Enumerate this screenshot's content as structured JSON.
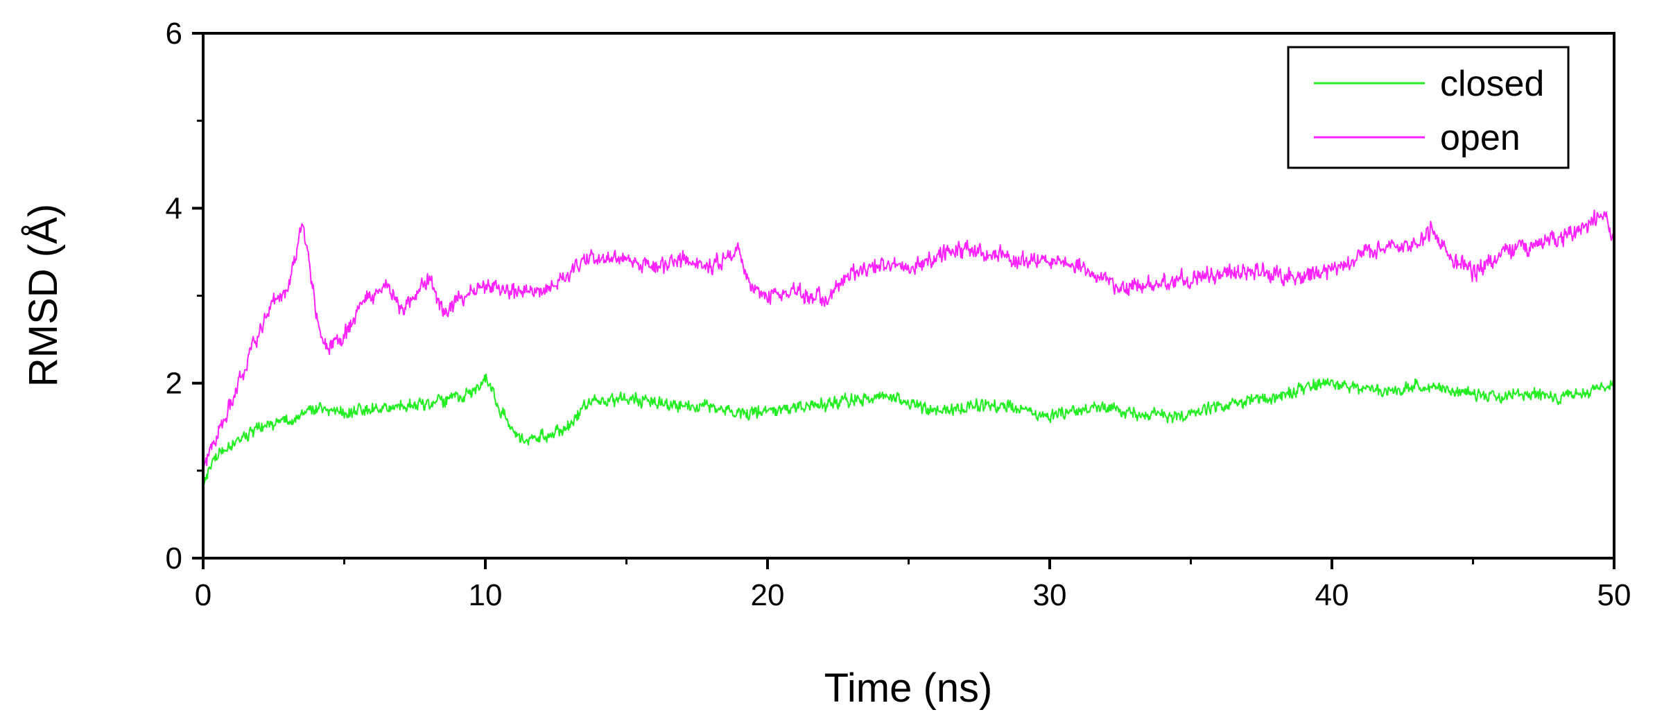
{
  "chart_data": {
    "type": "line",
    "title": "",
    "xlabel": "Time (ns)",
    "ylabel": "RMSD (Å)",
    "xlim": [
      0,
      50
    ],
    "ylim": [
      0,
      6
    ],
    "x_ticks": [
      0,
      10,
      20,
      30,
      40,
      50
    ],
    "x_minor_ticks": [
      5,
      15,
      25,
      35,
      45
    ],
    "y_ticks": [
      0,
      2,
      4,
      6
    ],
    "y_minor_ticks": [
      1,
      3,
      5
    ],
    "grid": false,
    "legend": {
      "position": "top-right"
    },
    "series": [
      {
        "name": "closed",
        "color": "#22ee22",
        "noise": 0.09,
        "points": [
          [
            0,
            0.8
          ],
          [
            0.3,
            1.1
          ],
          [
            0.7,
            1.25
          ],
          [
            1,
            1.3
          ],
          [
            1.5,
            1.4
          ],
          [
            2,
            1.5
          ],
          [
            2.5,
            1.55
          ],
          [
            3,
            1.6
          ],
          [
            3.5,
            1.65
          ],
          [
            4,
            1.7
          ],
          [
            5,
            1.65
          ],
          [
            6,
            1.7
          ],
          [
            7,
            1.72
          ],
          [
            8,
            1.75
          ],
          [
            9,
            1.85
          ],
          [
            9.8,
            1.95
          ],
          [
            10,
            2.05
          ],
          [
            10.5,
            1.7
          ],
          [
            11,
            1.45
          ],
          [
            11.5,
            1.35
          ],
          [
            12,
            1.4
          ],
          [
            12.8,
            1.45
          ],
          [
            13.5,
            1.75
          ],
          [
            14,
            1.8
          ],
          [
            15,
            1.82
          ],
          [
            16,
            1.78
          ],
          [
            17,
            1.75
          ],
          [
            18,
            1.72
          ],
          [
            19,
            1.65
          ],
          [
            20,
            1.68
          ],
          [
            21,
            1.72
          ],
          [
            22,
            1.75
          ],
          [
            23,
            1.82
          ],
          [
            24,
            1.85
          ],
          [
            25,
            1.78
          ],
          [
            26,
            1.7
          ],
          [
            27,
            1.72
          ],
          [
            28,
            1.75
          ],
          [
            29,
            1.7
          ],
          [
            30,
            1.62
          ],
          [
            31,
            1.7
          ],
          [
            32,
            1.72
          ],
          [
            33,
            1.65
          ],
          [
            34,
            1.62
          ],
          [
            35,
            1.65
          ],
          [
            36,
            1.72
          ],
          [
            37,
            1.78
          ],
          [
            38,
            1.85
          ],
          [
            39,
            1.95
          ],
          [
            40,
            2.02
          ],
          [
            41,
            1.95
          ],
          [
            42,
            1.9
          ],
          [
            43,
            1.98
          ],
          [
            44,
            1.95
          ],
          [
            45,
            1.88
          ],
          [
            46,
            1.85
          ],
          [
            47,
            1.87
          ],
          [
            48,
            1.85
          ],
          [
            49,
            1.9
          ],
          [
            50,
            2.0
          ]
        ]
      },
      {
        "name": "open",
        "color": "#ff22ff",
        "noise": 0.12,
        "points": [
          [
            0,
            1.0
          ],
          [
            0.5,
            1.4
          ],
          [
            1,
            1.8
          ],
          [
            1.5,
            2.2
          ],
          [
            2,
            2.6
          ],
          [
            2.5,
            2.95
          ],
          [
            3,
            3.05
          ],
          [
            3.3,
            3.5
          ],
          [
            3.5,
            3.85
          ],
          [
            3.8,
            3.3
          ],
          [
            4.1,
            2.6
          ],
          [
            4.4,
            2.4
          ],
          [
            5,
            2.55
          ],
          [
            5.5,
            2.8
          ],
          [
            6,
            3.05
          ],
          [
            6.5,
            3.1
          ],
          [
            7,
            2.85
          ],
          [
            7.5,
            2.95
          ],
          [
            8,
            3.2
          ],
          [
            8.5,
            2.8
          ],
          [
            9,
            2.95
          ],
          [
            10,
            3.1
          ],
          [
            11,
            3.05
          ],
          [
            12,
            3.05
          ],
          [
            13,
            3.25
          ],
          [
            13.5,
            3.45
          ],
          [
            14,
            3.4
          ],
          [
            15,
            3.45
          ],
          [
            16,
            3.3
          ],
          [
            17,
            3.4
          ],
          [
            18,
            3.3
          ],
          [
            18.5,
            3.45
          ],
          [
            19,
            3.5
          ],
          [
            19.5,
            3.05
          ],
          [
            20,
            3.0
          ],
          [
            21,
            3.05
          ],
          [
            22,
            2.95
          ],
          [
            23,
            3.25
          ],
          [
            24,
            3.35
          ],
          [
            25,
            3.3
          ],
          [
            26,
            3.45
          ],
          [
            27,
            3.55
          ],
          [
            28,
            3.45
          ],
          [
            29,
            3.4
          ],
          [
            30,
            3.42
          ],
          [
            31,
            3.35
          ],
          [
            32,
            3.2
          ],
          [
            32.5,
            3.05
          ],
          [
            33,
            3.1
          ],
          [
            34,
            3.15
          ],
          [
            35,
            3.2
          ],
          [
            36,
            3.25
          ],
          [
            37,
            3.3
          ],
          [
            38,
            3.25
          ],
          [
            39,
            3.2
          ],
          [
            40,
            3.3
          ],
          [
            41,
            3.45
          ],
          [
            42,
            3.55
          ],
          [
            43,
            3.6
          ],
          [
            43.5,
            3.75
          ],
          [
            44,
            3.5
          ],
          [
            45,
            3.25
          ],
          [
            46,
            3.45
          ],
          [
            47,
            3.55
          ],
          [
            48,
            3.65
          ],
          [
            49,
            3.8
          ],
          [
            49.7,
            3.95
          ],
          [
            50,
            3.55
          ]
        ]
      }
    ]
  }
}
